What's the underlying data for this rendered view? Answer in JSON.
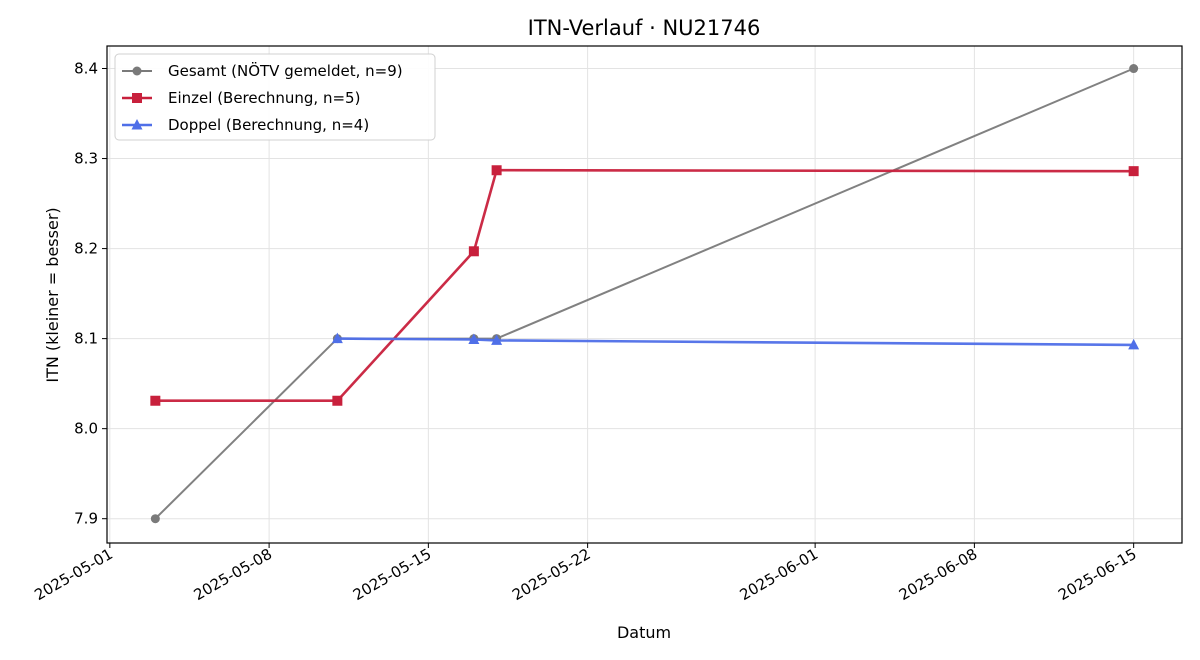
{
  "chart_data": {
    "type": "line",
    "title": "ITN-Verlauf · NU21746",
    "xlabel": "Datum",
    "ylabel": "ITN  (kleiner = besser)",
    "xlim": [
      "2025-04-30T21:00",
      "2025-06-17T03:00"
    ],
    "ylim": [
      7.873,
      8.425
    ],
    "x_ticks": [
      "2025-05-01",
      "2025-05-08",
      "2025-05-15",
      "2025-05-22",
      "2025-06-01",
      "2025-06-08",
      "2025-06-15"
    ],
    "y_ticks": [
      "7.9",
      "8.0",
      "8.1",
      "8.2",
      "8.3",
      "8.4"
    ],
    "grid": true,
    "legend_position": "top-left",
    "series": [
      {
        "name": "Gesamt (NÖTV gemeldet, n=9)",
        "color": "#7a7a7a",
        "marker": "circle",
        "points": [
          {
            "x": "2025-05-03",
            "y": 7.9
          },
          {
            "x": "2025-05-11",
            "y": 8.1
          },
          {
            "x": "2025-05-17",
            "y": 8.1
          },
          {
            "x": "2025-05-18",
            "y": 8.1
          },
          {
            "x": "2025-06-15",
            "y": 8.4
          }
        ]
      },
      {
        "name": "Einzel (Berechnung, n=5)",
        "color": "#c8203c",
        "marker": "square",
        "points": [
          {
            "x": "2025-05-03",
            "y": 8.031
          },
          {
            "x": "2025-05-11",
            "y": 8.031
          },
          {
            "x": "2025-05-17",
            "y": 8.197
          },
          {
            "x": "2025-05-18",
            "y": 8.287
          },
          {
            "x": "2025-06-15",
            "y": 8.286
          }
        ]
      },
      {
        "name": "Doppel (Berechnung, n=4)",
        "color": "#4f6fe8",
        "marker": "triangle",
        "points": [
          {
            "x": "2025-05-11",
            "y": 8.1
          },
          {
            "x": "2025-05-17",
            "y": 8.099
          },
          {
            "x": "2025-05-18",
            "y": 8.098
          },
          {
            "x": "2025-06-15",
            "y": 8.093
          }
        ]
      }
    ]
  }
}
